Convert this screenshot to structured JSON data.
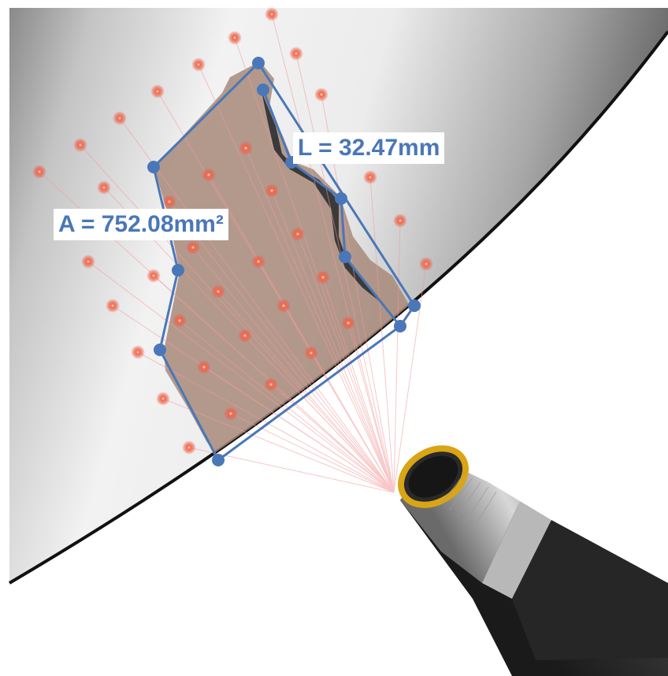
{
  "measurements": {
    "length_text": "L = 32.47mm",
    "area_text": "A = 752.08mm²"
  },
  "colors": {
    "outline": "#4a77b8",
    "laser_dot": "#e8483a",
    "laser_ray": "#f29a9a",
    "defect_fill": "#a8897a",
    "probe_ring": "#d9a514",
    "probe_body": "#2b2b2b"
  },
  "icons": {
    "probe": "borescope-probe-icon"
  }
}
